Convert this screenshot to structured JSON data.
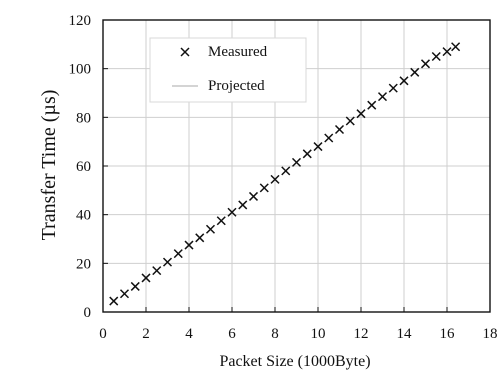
{
  "chart_data": {
    "type": "scatter",
    "title": "",
    "xlabel": "Packet Size (1000Byte)",
    "ylabel": "Transfer Time (µs)",
    "xlim": [
      0,
      18
    ],
    "ylim": [
      0,
      120
    ],
    "x_ticks": [
      "0",
      "2",
      "4",
      "6",
      "8",
      "10",
      "12",
      "14",
      "16",
      "18"
    ],
    "y_ticks": [
      "0",
      "20",
      "40",
      "60",
      "80",
      "100",
      "120"
    ],
    "grid": true,
    "legend_position": "top-left",
    "series": [
      {
        "name": "Measured",
        "marker": "x",
        "color": "#111111",
        "x": [
          0.5,
          1.0,
          1.5,
          2.0,
          2.5,
          3.0,
          3.5,
          4.0,
          4.5,
          5.0,
          5.5,
          6.0,
          6.5,
          7.0,
          7.5,
          8.0,
          8.5,
          9.0,
          9.5,
          10.0,
          10.5,
          11.0,
          11.5,
          12.0,
          12.5,
          13.0,
          13.5,
          14.0,
          14.5,
          15.0,
          15.5,
          16.0,
          16.4
        ],
        "y": [
          4.5,
          7.5,
          10.5,
          14,
          17,
          20.5,
          24,
          27.5,
          30.5,
          34,
          37.5,
          41,
          44,
          47.5,
          51,
          54.5,
          58,
          61.5,
          65,
          68,
          71.5,
          75,
          78.5,
          81.5,
          85,
          88.5,
          92,
          95,
          98.5,
          102,
          105,
          107,
          109
        ]
      },
      {
        "name": "Projected",
        "marker": "line",
        "color": "#aaaaaa",
        "x": [],
        "y": []
      }
    ]
  }
}
